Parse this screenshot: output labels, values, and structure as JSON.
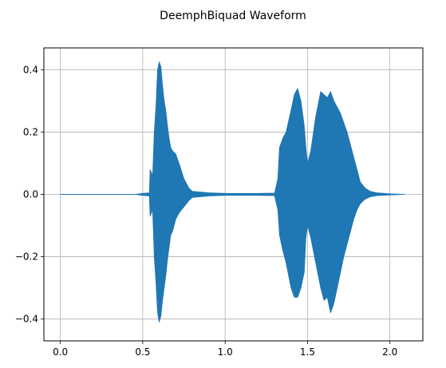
{
  "chart_data": {
    "type": "line",
    "title": "DeemphBiquad Waveform",
    "xlabel": "",
    "ylabel": "",
    "xlim": [
      -0.1,
      2.2
    ],
    "ylim": [
      -0.47,
      0.47
    ],
    "x_ticks": [
      0.0,
      0.5,
      1.0,
      1.5,
      2.0
    ],
    "x_tick_labels": [
      "0.0",
      "0.5",
      "1.0",
      "1.5",
      "2.0"
    ],
    "y_ticks": [
      -0.4,
      -0.2,
      0.0,
      0.2,
      0.4
    ],
    "y_tick_labels": [
      "−0.4",
      "−0.2",
      "0.0",
      "0.2",
      "0.4"
    ],
    "grid": true,
    "series": [
      {
        "color": "#1f77b4",
        "envelope_x": [
          0.0,
          0.45,
          0.5,
          0.54,
          0.545,
          0.56,
          0.57,
          0.58,
          0.59,
          0.6,
          0.61,
          0.62,
          0.63,
          0.64,
          0.65,
          0.66,
          0.67,
          0.68,
          0.7,
          0.72,
          0.75,
          0.78,
          0.8,
          0.9,
          1.0,
          1.1,
          1.2,
          1.3,
          1.32,
          1.33,
          1.35,
          1.37,
          1.4,
          1.42,
          1.44,
          1.46,
          1.48,
          1.49,
          1.5,
          1.52,
          1.55,
          1.58,
          1.6,
          1.62,
          1.64,
          1.66,
          1.68,
          1.7,
          1.72,
          1.74,
          1.76,
          1.78,
          1.8,
          1.82,
          1.85,
          1.88,
          1.92,
          2.0,
          2.09
        ],
        "envelope_max": [
          0.0,
          0.0,
          0.003,
          0.005,
          0.08,
          0.06,
          0.2,
          0.28,
          0.4,
          0.425,
          0.41,
          0.35,
          0.3,
          0.27,
          0.22,
          0.18,
          0.15,
          0.14,
          0.13,
          0.1,
          0.05,
          0.02,
          0.01,
          0.005,
          0.003,
          0.003,
          0.003,
          0.004,
          0.05,
          0.15,
          0.18,
          0.2,
          0.27,
          0.32,
          0.34,
          0.3,
          0.22,
          0.15,
          0.1,
          0.14,
          0.25,
          0.33,
          0.32,
          0.31,
          0.33,
          0.3,
          0.28,
          0.26,
          0.23,
          0.2,
          0.16,
          0.12,
          0.08,
          0.04,
          0.02,
          0.01,
          0.005,
          0.002,
          0.0
        ],
        "envelope_min": [
          0.0,
          0.0,
          -0.003,
          -0.005,
          -0.07,
          -0.05,
          -0.2,
          -0.28,
          -0.38,
          -0.41,
          -0.39,
          -0.34,
          -0.3,
          -0.26,
          -0.21,
          -0.17,
          -0.13,
          -0.12,
          -0.08,
          -0.06,
          -0.04,
          -0.02,
          -0.01,
          -0.005,
          -0.003,
          -0.003,
          -0.003,
          -0.004,
          -0.05,
          -0.13,
          -0.18,
          -0.22,
          -0.3,
          -0.33,
          -0.33,
          -0.3,
          -0.25,
          -0.14,
          -0.1,
          -0.14,
          -0.22,
          -0.3,
          -0.34,
          -0.33,
          -0.38,
          -0.35,
          -0.3,
          -0.25,
          -0.2,
          -0.16,
          -0.12,
          -0.08,
          -0.05,
          -0.03,
          -0.015,
          -0.008,
          -0.004,
          -0.002,
          0.0
        ]
      }
    ]
  }
}
